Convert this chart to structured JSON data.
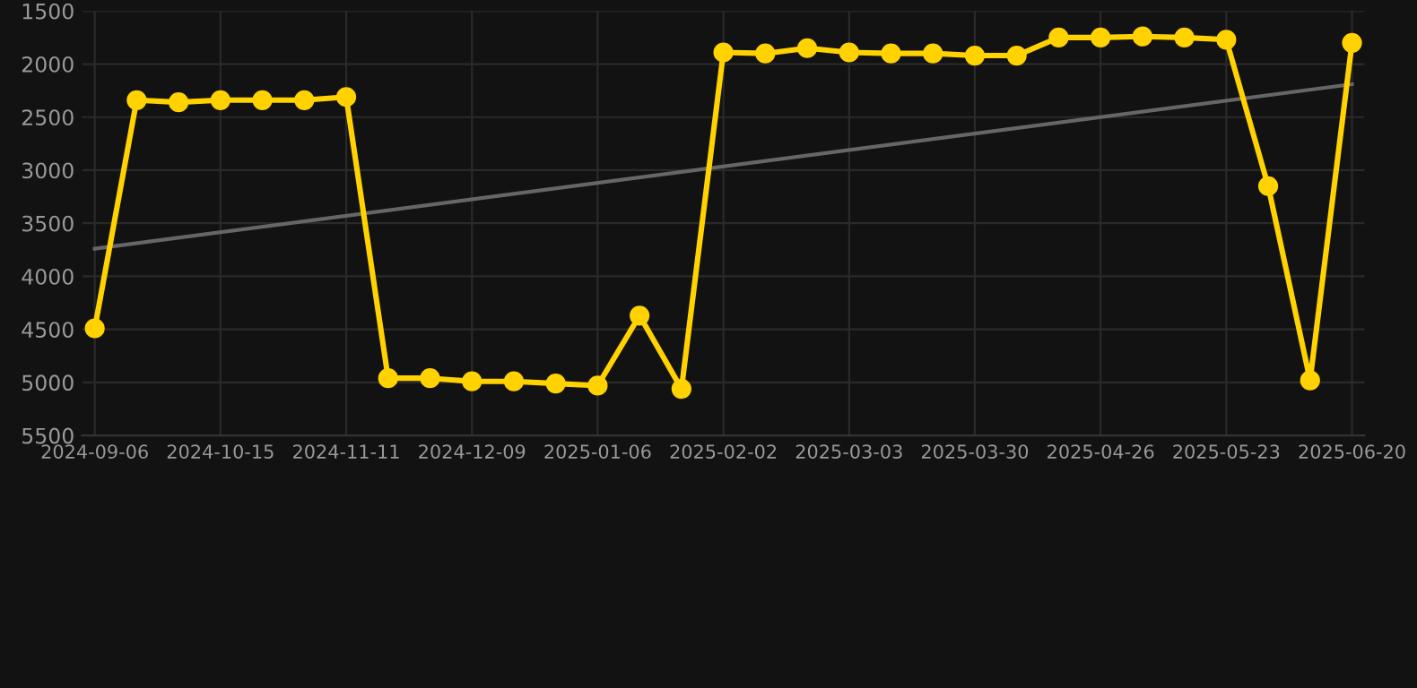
{
  "chart_data": {
    "type": "line",
    "categories": [
      "2024-09-06",
      null,
      null,
      "2024-10-15",
      null,
      null,
      "2024-11-11",
      null,
      null,
      "2024-12-09",
      null,
      null,
      "2025-01-06",
      null,
      null,
      "2025-02-02",
      null,
      null,
      "2025-03-03",
      null,
      null,
      "2025-03-30",
      null,
      null,
      "2025-04-26",
      null,
      null,
      "2025-05-23",
      null,
      null,
      "2025-06-20"
    ],
    "series": [
      {
        "color": "#ffd200",
        "marker": "circle",
        "values": [
          4490,
          2340,
          2360,
          2340,
          2340,
          2340,
          2310,
          4960,
          4960,
          4990,
          4990,
          5010,
          5030,
          4370,
          5060,
          1890,
          1900,
          1850,
          1890,
          1900,
          1900,
          1920,
          1920,
          1750,
          1750,
          1740,
          1750,
          1770,
          3150,
          4980,
          1800
        ]
      },
      {
        "color": "#666666",
        "marker": "none",
        "values": [
          3740,
          null,
          null,
          null,
          null,
          null,
          null,
          null,
          null,
          null,
          null,
          null,
          null,
          null,
          null,
          null,
          null,
          null,
          null,
          null,
          null,
          null,
          null,
          null,
          null,
          null,
          null,
          null,
          null,
          null,
          2190
        ]
      }
    ],
    "ylim": [
      5500,
      1500
    ],
    "yticks": [
      1500,
      2000,
      2500,
      3000,
      3500,
      4000,
      4500,
      5000,
      5500
    ],
    "grid": true
  }
}
